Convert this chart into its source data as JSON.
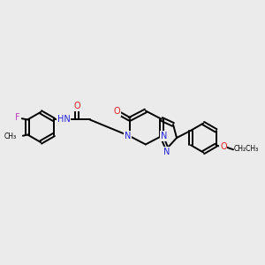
{
  "background_color": "#ebebeb",
  "bond_color": "#000000",
  "nitrogen_color": "#2020dd",
  "oxygen_color": "#dd2020",
  "fluorine_color": "#bb44bb",
  "figsize": [
    3.0,
    3.0
  ],
  "dpi": 100,
  "lw": 1.4,
  "fs": 7.0,
  "xlim": [
    0,
    14
  ],
  "ylim": [
    0,
    10
  ]
}
